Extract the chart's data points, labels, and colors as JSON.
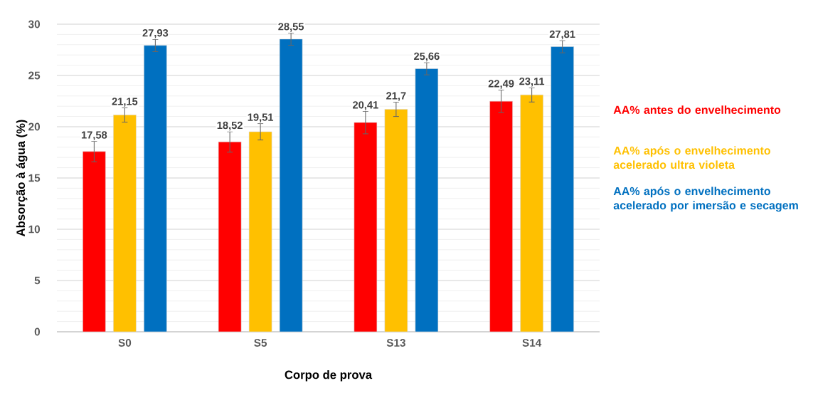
{
  "chart_data": {
    "type": "bar",
    "xlabel": "Corpo de prova",
    "ylabel": "Absorção à água  (%)",
    "categories": [
      "S0",
      "S5",
      "S13",
      "S14"
    ],
    "series": [
      {
        "name": "AA% antes do envelhecimento",
        "color": "#ff0000",
        "values": [
          17.58,
          18.52,
          20.41,
          22.49
        ],
        "value_labels": [
          "17,58",
          "18,52",
          "20,41",
          "22,49"
        ],
        "errors": [
          1.0,
          1.0,
          1.1,
          1.1
        ]
      },
      {
        "name": "AA% após o envelhecimento acelerado ultra violeta",
        "color": "#ffc000",
        "values": [
          21.15,
          19.51,
          21.7,
          23.11
        ],
        "value_labels": [
          "21,15",
          "19,51",
          "21,7",
          "23,11"
        ],
        "errors": [
          0.7,
          0.8,
          0.7,
          0.7
        ]
      },
      {
        "name": "AA% após o envelhecimento acelerado por imersão e secagem",
        "color": "#0070c0",
        "values": [
          27.93,
          28.55,
          25.66,
          27.81
        ],
        "value_labels": [
          "27,93",
          "28,55",
          "25,66",
          "27,81"
        ],
        "errors": [
          0.6,
          0.6,
          0.6,
          0.6
        ]
      }
    ],
    "ylim": [
      0,
      30
    ],
    "yticks": [
      0,
      5,
      10,
      15,
      20,
      25,
      30
    ],
    "grid": "y",
    "legend": "right"
  }
}
